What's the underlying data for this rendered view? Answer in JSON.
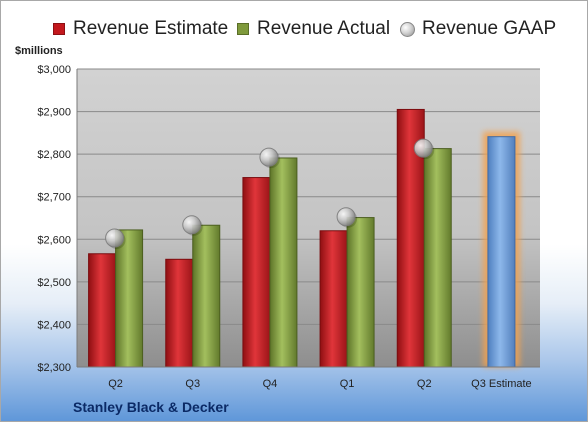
{
  "legend": {
    "estimate": "Revenue Estimate",
    "actual": "Revenue Actual",
    "gaap": "Revenue GAAP"
  },
  "unit_label": "$millions",
  "company": "Stanley Black & Decker",
  "colors": {
    "estimate": "#c3181d",
    "actual": "#7f9a3c",
    "gaap": "#b9b9b9",
    "future_estimate": "#6b9bd7",
    "future_glow": "#f2a24f"
  },
  "chart_data": {
    "type": "bar",
    "categories": [
      "Q2",
      "Q3",
      "Q4",
      "Q1",
      "Q2",
      "Q3 Estimate"
    ],
    "series": [
      {
        "name": "Revenue Estimate",
        "values": [
          2566,
          2553,
          2745,
          2620,
          2905,
          2841
        ]
      },
      {
        "name": "Revenue Actual",
        "values": [
          2622,
          2633,
          2791,
          2651,
          2813,
          null
        ]
      },
      {
        "name": "Revenue GAAP",
        "values": [
          2603,
          2634,
          2793,
          2653,
          2814,
          null
        ]
      }
    ],
    "ylabel": "$millions",
    "ylim": [
      2300,
      3000
    ],
    "yticks": [
      2300,
      2400,
      2500,
      2600,
      2700,
      2800,
      2900,
      3000
    ],
    "ytick_labels": [
      "$2,300",
      "$2,400",
      "$2,500",
      "$2,600",
      "$2,700",
      "$2,800",
      "$2,900",
      "$3,000"
    ],
    "grid": true,
    "legend_position": "top"
  }
}
